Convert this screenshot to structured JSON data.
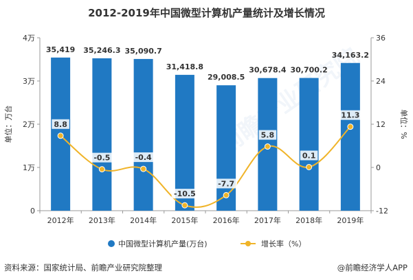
{
  "title": "2012-2019年中国微型计算机产量统计及增长情况",
  "footer": {
    "source": "资料来源：国家统计局、前瞻产业研究院整理",
    "brand": "@前瞻经济学人APP"
  },
  "watermark": "前瞻产业研究院",
  "colors": {
    "bar": "#2079c3",
    "line": "#f0b429",
    "axis": "#999999",
    "text": "#333333"
  },
  "chart_data": {
    "type": "bar",
    "categories": [
      "2012年",
      "2013年",
      "2014年",
      "2015年",
      "2016年",
      "2017年",
      "2018年",
      "2019年"
    ],
    "series": [
      {
        "name": "中国微型计算机产量(万台)",
        "type": "bar",
        "axis": "left",
        "values": [
          35419,
          35246.3,
          35090.7,
          31418.8,
          29008.5,
          30678.4,
          30700.2,
          34163.2
        ],
        "labels": [
          "35,419",
          "35,246.3",
          "35,090.7",
          "31,418.8",
          "29,008.5",
          "30,678.4",
          "30,700.2",
          "34,163.2"
        ]
      },
      {
        "name": "增长率（%）",
        "type": "line",
        "axis": "right",
        "values": [
          8.8,
          -0.5,
          -0.4,
          -10.5,
          -7.7,
          5.8,
          0.1,
          11.3
        ],
        "labels": [
          "8.8",
          "-0.5",
          "-0.4",
          "-10.5",
          "-7.7",
          "5.8",
          "0.1",
          "11.3"
        ]
      }
    ],
    "left_axis": {
      "label": "单位：万台",
      "range": [
        0,
        40000
      ],
      "ticks": [
        0,
        10000,
        20000,
        30000,
        40000
      ],
      "tick_labels": [
        "0",
        "1万",
        "2万",
        "3万",
        "4万"
      ]
    },
    "right_axis": {
      "label": "单位：%",
      "range": [
        -12,
        36
      ],
      "ticks": [
        -12,
        0,
        12,
        24,
        36
      ],
      "tick_labels": [
        "-12",
        "0",
        "12",
        "24",
        "36"
      ]
    },
    "legend": {
      "position": "bottom",
      "items": [
        "中国微型计算机产量(万台)",
        "增长率（%）"
      ]
    },
    "grid": false
  }
}
